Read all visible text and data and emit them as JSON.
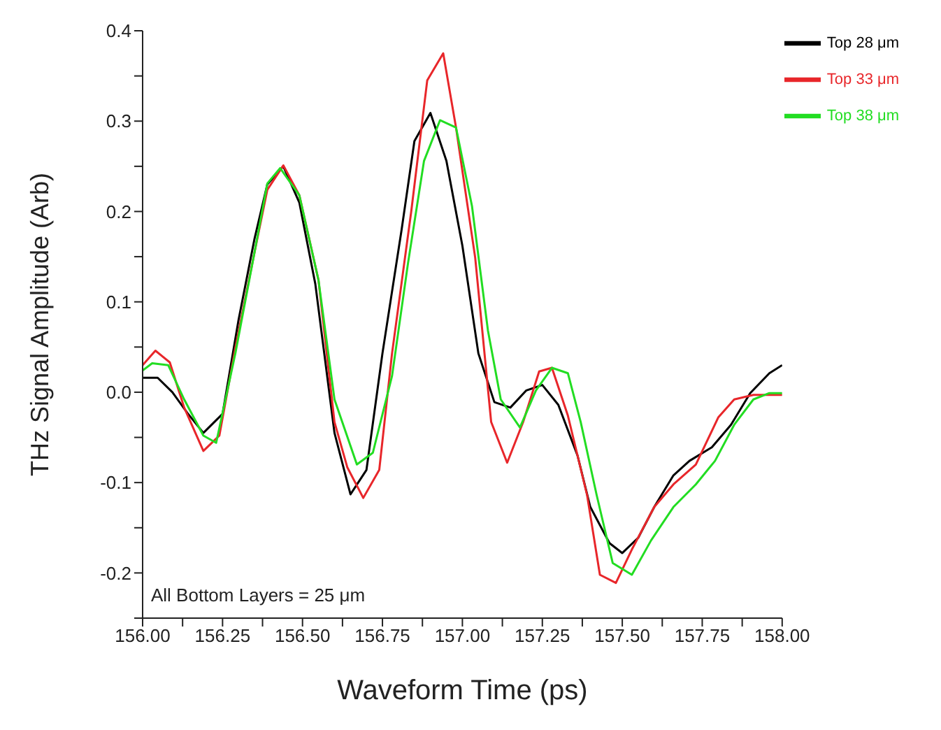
{
  "chart_data": {
    "type": "line",
    "xlabel": "Waveform Time (ps)",
    "ylabel": "THz Signal Amplitude (Arb)",
    "annotations": [
      "All Bottom Layers = 25 μm"
    ],
    "xlim": [
      156,
      158
    ],
    "ylim": [
      -0.25,
      0.4
    ],
    "xticks": [
      {
        "value": 156,
        "label": "156.00"
      },
      {
        "value": 156.125,
        "label": null
      },
      {
        "value": 156.25,
        "label": "156.25"
      },
      {
        "value": 156.375,
        "label": null
      },
      {
        "value": 156.5,
        "label": "156.50"
      },
      {
        "value": 156.625,
        "label": null
      },
      {
        "value": 156.75,
        "label": "156.75"
      },
      {
        "value": 156.875,
        "label": null
      },
      {
        "value": 157,
        "label": "157.00"
      },
      {
        "value": 157.125,
        "label": null
      },
      {
        "value": 157.25,
        "label": "157.25"
      },
      {
        "value": 157.375,
        "label": null
      },
      {
        "value": 157.5,
        "label": "157.50"
      },
      {
        "value": 157.625,
        "label": null
      },
      {
        "value": 157.75,
        "label": "157.75"
      },
      {
        "value": 157.875,
        "label": null
      },
      {
        "value": 158,
        "label": "158.00"
      }
    ],
    "yticks": [
      {
        "value": -0.25,
        "label": null
      },
      -0.2,
      {
        "value": -0.15,
        "label": null
      },
      -0.1,
      {
        "value": -0.05,
        "label": null
      },
      {
        "value": 0,
        "label": "0.0"
      },
      {
        "value": 0.05,
        "label": null
      },
      0.1,
      {
        "value": 0.15,
        "label": null
      },
      0.2,
      {
        "value": 0.25,
        "label": null
      },
      0.3,
      {
        "value": 0.35,
        "label": null
      },
      0.4
    ],
    "grid": false,
    "legend": "top right",
    "marker": "none",
    "line_style": "solid",
    "series": [
      {
        "name": "Top 28 μm",
        "color": "#000000",
        "x": [
          156.0,
          156.047,
          156.093,
          156.14,
          156.19,
          156.25,
          156.3,
          156.35,
          156.39,
          156.44,
          156.49,
          156.54,
          156.6,
          156.65,
          156.7,
          156.75,
          156.81,
          156.85,
          156.9,
          156.95,
          157.0,
          157.05,
          157.1,
          157.15,
          157.2,
          157.25,
          157.3,
          157.36,
          157.4,
          157.46,
          157.5,
          157.55,
          157.6,
          157.66,
          157.71,
          157.78,
          157.84,
          157.9,
          157.96,
          158.0
        ],
        "values": [
          0.016,
          0.016,
          0.0,
          -0.023,
          -0.045,
          -0.024,
          0.08,
          0.17,
          0.23,
          0.25,
          0.21,
          0.12,
          -0.045,
          -0.113,
          -0.086,
          0.043,
          0.18,
          0.278,
          0.309,
          0.256,
          0.162,
          0.043,
          -0.011,
          -0.017,
          0.002,
          0.008,
          -0.014,
          -0.07,
          -0.127,
          -0.167,
          -0.178,
          -0.161,
          -0.127,
          -0.092,
          -0.076,
          -0.061,
          -0.036,
          -0.001,
          0.021,
          0.03
        ]
      },
      {
        "name": "Top 33 μm",
        "color": "#e8262a",
        "x": [
          156.0,
          156.04,
          156.085,
          156.13,
          156.19,
          156.24,
          156.29,
          156.35,
          156.39,
          156.44,
          156.49,
          156.55,
          156.6,
          156.64,
          156.69,
          156.74,
          156.78,
          156.84,
          156.89,
          156.94,
          156.98,
          157.04,
          157.09,
          157.14,
          157.19,
          157.24,
          157.28,
          157.33,
          157.39,
          157.43,
          157.48,
          157.53,
          157.6,
          157.66,
          157.73,
          157.8,
          157.85,
          157.91,
          158.0
        ],
        "values": [
          0.03,
          0.046,
          0.033,
          -0.017,
          -0.065,
          -0.048,
          0.049,
          0.155,
          0.224,
          0.251,
          0.218,
          0.124,
          -0.033,
          -0.083,
          -0.117,
          -0.086,
          0.043,
          0.2,
          0.345,
          0.375,
          0.293,
          0.149,
          -0.033,
          -0.078,
          -0.033,
          0.023,
          0.027,
          -0.026,
          -0.114,
          -0.202,
          -0.211,
          -0.174,
          -0.127,
          -0.102,
          -0.08,
          -0.028,
          -0.008,
          -0.003,
          -0.003
        ]
      },
      {
        "name": "Top 38 μm",
        "color": "#22dd22",
        "x": [
          156.0,
          156.03,
          156.08,
          156.13,
          156.19,
          156.23,
          156.29,
          156.35,
          156.39,
          156.43,
          156.49,
          156.55,
          156.6,
          156.67,
          156.72,
          156.78,
          156.83,
          156.88,
          156.93,
          156.98,
          157.03,
          157.08,
          157.12,
          157.18,
          157.23,
          157.28,
          157.33,
          157.37,
          157.42,
          157.47,
          157.53,
          157.59,
          157.66,
          157.73,
          157.79,
          157.85,
          157.91,
          157.96,
          158.0
        ],
        "values": [
          0.024,
          0.032,
          0.03,
          -0.008,
          -0.048,
          -0.056,
          0.043,
          0.155,
          0.231,
          0.248,
          0.218,
          0.124,
          -0.008,
          -0.08,
          -0.067,
          0.018,
          0.143,
          0.256,
          0.301,
          0.293,
          0.206,
          0.068,
          -0.008,
          -0.039,
          0.002,
          0.027,
          0.021,
          -0.033,
          -0.114,
          -0.189,
          -0.202,
          -0.164,
          -0.127,
          -0.102,
          -0.076,
          -0.036,
          -0.008,
          -0.001,
          -0.001
        ]
      }
    ]
  }
}
